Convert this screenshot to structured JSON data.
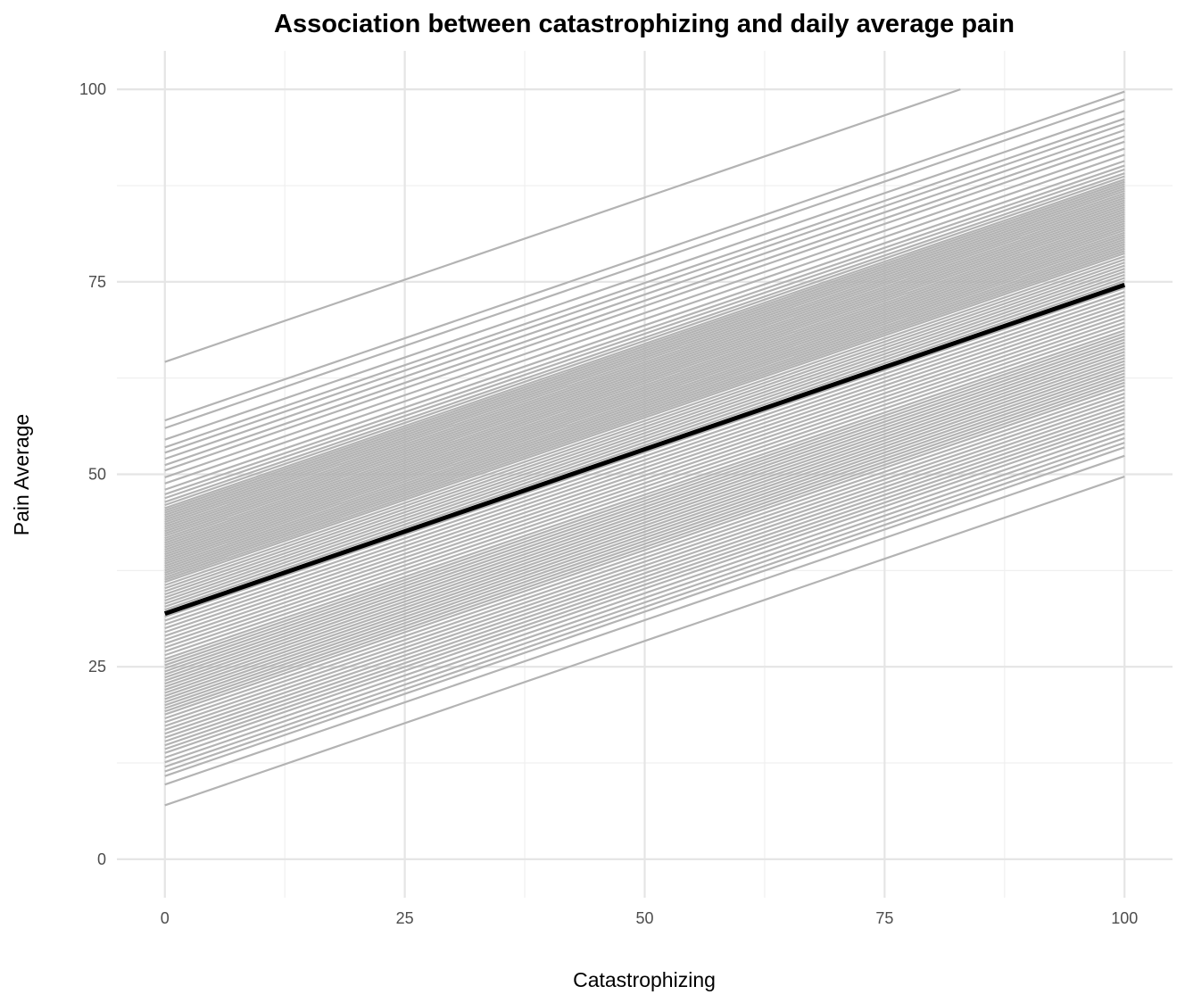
{
  "chart_data": {
    "type": "line",
    "title": "Association between catastrophizing and daily average pain",
    "xlabel": "Catastrophizing",
    "ylabel": "Pain Average",
    "xlim": [
      -5,
      105
    ],
    "ylim": [
      -5,
      105
    ],
    "x_ticks": [
      "0",
      "25",
      "50",
      "75",
      "100"
    ],
    "y_ticks": [
      "0",
      "25",
      "50",
      "75",
      "100"
    ],
    "grid": true,
    "legend": "none",
    "colors": {
      "individual": "#b3b3b3",
      "average": "#000000"
    },
    "average_line": {
      "x": [
        0,
        100
      ],
      "y": [
        31.9,
        74.6
      ]
    },
    "slope": 0.427,
    "individual_intercepts": [
      64.6,
      57.0,
      56.0,
      54.5,
      53.5,
      52.8,
      52.0,
      51.2,
      50.5,
      49.6,
      48.8,
      48.0,
      47.4,
      46.9,
      46.4,
      46.0,
      45.6,
      45.3,
      45.0,
      44.7,
      44.4,
      44.1,
      43.8,
      43.5,
      43.2,
      42.9,
      42.6,
      42.3,
      42.0,
      41.7,
      41.4,
      41.1,
      40.8,
      40.5,
      40.2,
      39.9,
      39.6,
      39.3,
      39.0,
      38.7,
      38.4,
      38.1,
      37.8,
      37.5,
      37.2,
      36.9,
      36.6,
      36.3,
      36.0,
      35.6,
      35.2,
      34.8,
      34.4,
      34.0,
      33.6,
      33.2,
      32.8,
      32.4,
      32.0,
      31.5,
      31.0,
      30.5,
      30.0,
      29.5,
      29.0,
      28.5,
      28.0,
      27.5,
      27.0,
      26.5,
      26.0,
      25.6,
      25.2,
      24.8,
      24.4,
      24.0,
      23.6,
      23.2,
      22.8,
      22.4,
      22.0,
      21.6,
      21.2,
      20.8,
      20.4,
      20.0,
      19.6,
      19.2,
      18.8,
      18.3,
      17.8,
      17.3,
      16.8,
      16.3,
      15.8,
      15.3,
      14.8,
      14.3,
      13.8,
      13.2,
      12.6,
      12.0,
      11.4,
      10.8,
      9.7,
      7.0
    ]
  }
}
